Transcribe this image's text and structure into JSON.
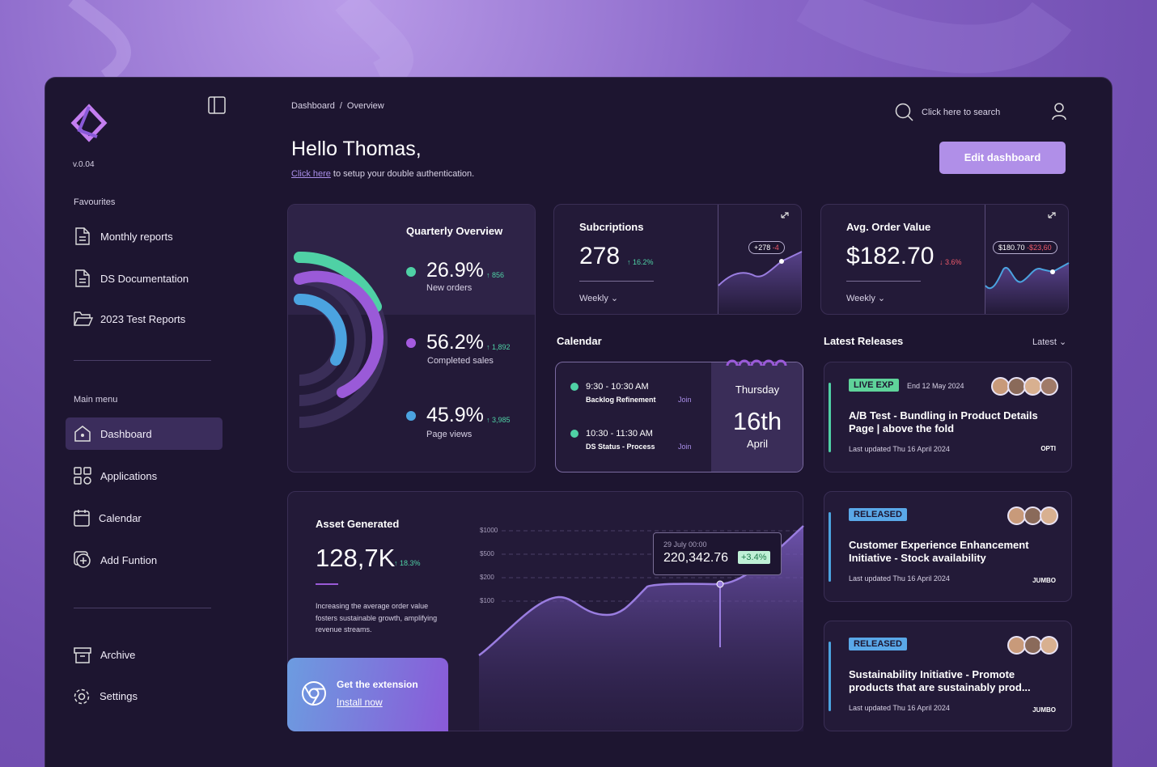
{
  "sidebar": {
    "version": "v.0.04",
    "favourites_title": "Favourites",
    "favourites": [
      "Monthly reports",
      "DS Documentation",
      "2023 Test Reports"
    ],
    "main_menu_title": "Main menu",
    "main_menu": [
      "Dashboard",
      "Applications",
      "Calendar",
      "Add Funtion"
    ],
    "bottom": [
      "Archive",
      "Settings"
    ]
  },
  "header": {
    "breadcrumb": [
      "Dashboard",
      "Overview"
    ],
    "separator": "/",
    "greeting": "Hello Thomas,",
    "auth_link": "Click here",
    "auth_text": "to setup your double authentication.",
    "search": "Click here to search",
    "edit_button": "Edit dashboard"
  },
  "quarterly": {
    "title": "Quarterly Overview",
    "items": [
      {
        "value": "26.9%",
        "change": "↑ 856",
        "label": "New orders"
      },
      {
        "value": "56.2%",
        "change": "↑ 1,892",
        "label": "Completed sales"
      },
      {
        "value": "45.9%",
        "change": "↑ 3,985",
        "label": "Page views"
      }
    ]
  },
  "subscriptions": {
    "title": "Subcriptions",
    "value": "278",
    "change": "↑ 16.2%",
    "period": "Weekly",
    "chip_value": "+278",
    "chip_change": "-4"
  },
  "order_value": {
    "title": "Avg. Order Value",
    "value": "$182.70",
    "change": "↓ 3.6%",
    "period": "Weekly",
    "chip_value": "$180.70",
    "chip_change": "-$23,60"
  },
  "calendar": {
    "title": "Calendar",
    "events": [
      {
        "time": "9:30 - 10:30 AM",
        "name": "Backlog Refinement",
        "action": "Join"
      },
      {
        "time": "10:30 - 11:30 AM",
        "name": "DS Status - Process",
        "action": "Join"
      }
    ],
    "day": "Thursday",
    "date": "16th",
    "month": "April"
  },
  "releases": {
    "title": "Latest Releases",
    "filter": "Latest",
    "items": [
      {
        "badge": "LIVE EXP",
        "end": "End 12 May 2024",
        "title": "A/B Test - Bundling in Product Details Page | above the fold",
        "updated": "Last updated Thu 16 April 2024",
        "team": "OPTI"
      },
      {
        "badge": "RELEASED",
        "title": "Customer Experience Enhancement Initiative - Stock availability",
        "updated": "Last updated Thu 16 April 2024",
        "team": "JUMBO"
      },
      {
        "badge": "RELEASED",
        "title": "Sustainability Initiative - Promote products that are sustainably prod...",
        "updated": "Last updated Thu 16 April 2024",
        "team": "JUMBO"
      }
    ]
  },
  "assets": {
    "title": "Asset Generated",
    "value": "128,7K",
    "change": "↑ 18.3%",
    "description": "Increasing the average order value fosters sustainable growth, amplifying revenue streams.",
    "axis_labels": [
      "$1000",
      "$500",
      "$200",
      "$100"
    ],
    "tooltip_date": "29 July 00:00",
    "tooltip_value": "220,342.76",
    "tooltip_change": "+3.4%",
    "extension_title": "Get the extension",
    "extension_link": "Install now"
  }
}
